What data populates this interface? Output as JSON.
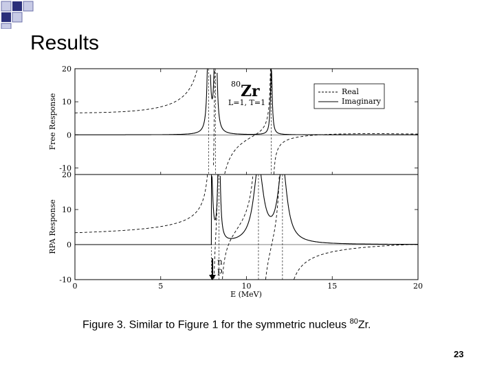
{
  "slide": {
    "title": "Results",
    "caption_prefix": "Figure 3. Similar to Figure 1 for the symmetric nucleus ",
    "caption_sup": "80",
    "caption_suffix": "Zr.",
    "page_number": "23"
  },
  "colors": {
    "square_dark": "#2b2f7a",
    "square_light": "#c8cbe6",
    "square_border": "#6a6fa8"
  },
  "chart_data": [
    {
      "type": "line",
      "panel": "top",
      "ylabel": "Free Response",
      "ylim": [
        -12,
        20
      ],
      "yticks": [
        "20",
        "10",
        "0",
        "-10"
      ],
      "xlim": [
        0,
        20
      ],
      "annotation": {
        "mass": "80",
        "element": "Zr",
        "quantum": "L=1,  T=1"
      },
      "legend": {
        "position": "top-right",
        "entries": [
          "Real",
          "Imaginary"
        ]
      },
      "poles_mev": [
        7.8,
        8.2,
        11.45
      ]
    },
    {
      "type": "line",
      "panel": "bottom",
      "ylabel": "RPA Response",
      "ylim": [
        -10,
        20
      ],
      "yticks": [
        "20",
        "10",
        "0",
        "-10"
      ],
      "xlabel": "E (MeV)",
      "xticks": [
        "0",
        "5",
        "10",
        "15",
        "20"
      ],
      "xlim": [
        0,
        20
      ],
      "poles_mev": [
        7.95,
        8.4,
        10.7,
        12.1
      ],
      "markers": {
        "x": 7.95,
        "labels": [
          "n",
          "p"
        ]
      }
    }
  ]
}
